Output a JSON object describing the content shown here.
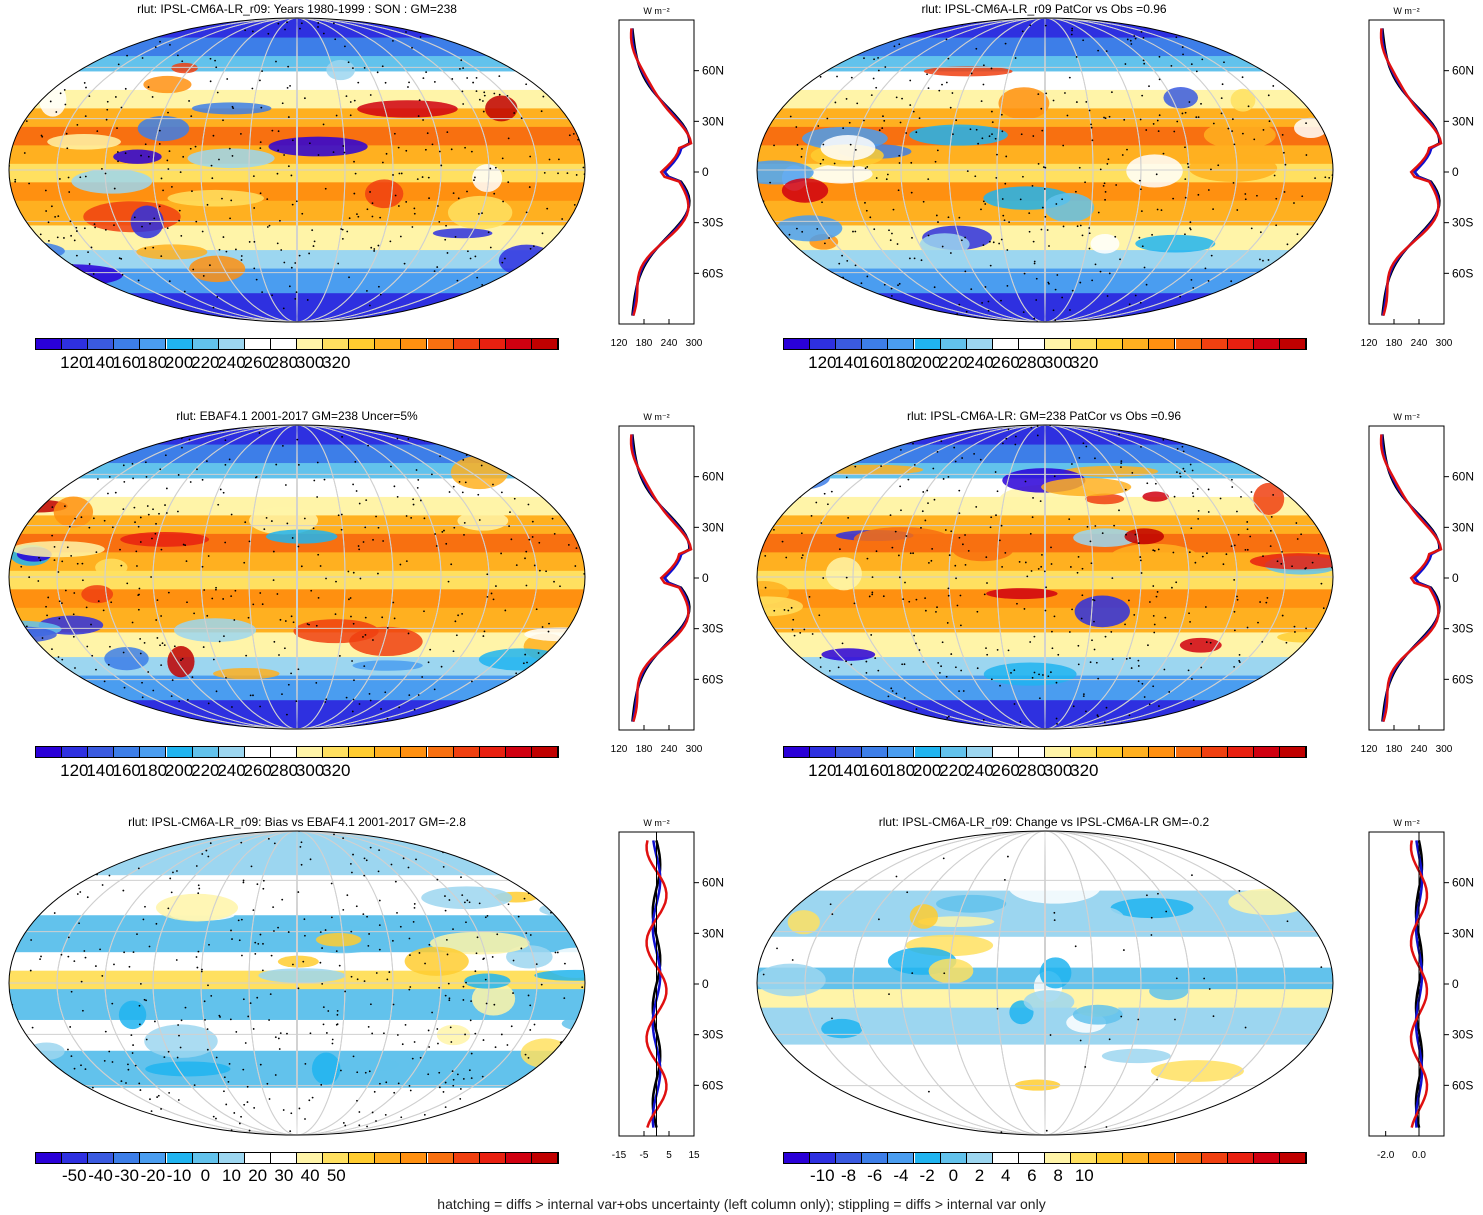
{
  "footer": "hatching = diffs > internal var+obs uncertainty (left column only); stippling = diffs > internal var only",
  "profile_units": "W m⁻²",
  "lat_ticks": [
    "60N",
    "30N",
    "0",
    "30S",
    "60S"
  ],
  "chart_data": [
    {
      "type": "heatmap",
      "title": "rlut: IPSL-CM6A-LR_r09: Years 1980-1999 : SON : GM=238",
      "colorbar_ticks": [
        "120",
        "140",
        "160",
        "180",
        "200",
        "220",
        "240",
        "260",
        "280",
        "300",
        "320"
      ],
      "profile": {
        "xticks": [
          "120",
          "180",
          "240",
          "300"
        ],
        "xlim": [
          120,
          300
        ],
        "series_colors": [
          "#000000",
          "#1010d0",
          "#e01010"
        ]
      }
    },
    {
      "type": "heatmap",
      "title": "rlut: IPSL-CM6A-LR_r09 PatCor vs Obs =0.96",
      "colorbar_ticks": [
        "120",
        "140",
        "160",
        "180",
        "200",
        "220",
        "240",
        "260",
        "280",
        "300",
        "320"
      ],
      "profile": {
        "xticks": [
          "120",
          "180",
          "240",
          "300"
        ],
        "xlim": [
          120,
          300
        ],
        "series_colors": [
          "#000000",
          "#1010d0",
          "#e01010"
        ]
      }
    },
    {
      "type": "heatmap",
      "title": "rlut: EBAF4.1 2001-2017 GM=238 Uncer=5%",
      "colorbar_ticks": [
        "120",
        "140",
        "160",
        "180",
        "200",
        "220",
        "240",
        "260",
        "280",
        "300",
        "320"
      ],
      "profile": {
        "xticks": [
          "120",
          "180",
          "240",
          "300"
        ],
        "xlim": [
          120,
          300
        ],
        "series_colors": [
          "#000000",
          "#1010d0",
          "#e01010"
        ]
      }
    },
    {
      "type": "heatmap",
      "title": "rlut: IPSL-CM6A-LR: GM=238 PatCor vs Obs =0.96",
      "colorbar_ticks": [
        "120",
        "140",
        "160",
        "180",
        "200",
        "220",
        "240",
        "260",
        "280",
        "300",
        "320"
      ],
      "profile": {
        "xticks": [
          "120",
          "180",
          "240",
          "300"
        ],
        "xlim": [
          120,
          300
        ],
        "series_colors": [
          "#000000",
          "#1010d0",
          "#e01010"
        ]
      }
    },
    {
      "type": "heatmap",
      "title": "rlut: IPSL-CM6A-LR_r09: Bias vs EBAF4.1 2001-2017  GM=-2.8",
      "colorbar_ticks": [
        "-50",
        "-40",
        "-30",
        "-20",
        "-10",
        "0",
        "10",
        "20",
        "30",
        "40",
        "50"
      ],
      "profile": {
        "xticks": [
          "-15",
          "-5",
          "5",
          "15"
        ],
        "xlim": [
          -15,
          15
        ],
        "series_colors": [
          "#000000",
          "#1010d0",
          "#e01010"
        ]
      }
    },
    {
      "type": "heatmap",
      "title": "rlut: IPSL-CM6A-LR_r09: Change vs IPSL-CM6A-LR GM=-0.2",
      "colorbar_ticks": [
        "-10",
        "-8",
        "-6",
        "-4",
        "-2",
        "0",
        "2",
        "4",
        "6",
        "8",
        "10"
      ],
      "profile": {
        "xticks": [
          "-2.0",
          "0.0"
        ],
        "xlim": [
          -3,
          1.5
        ],
        "series_colors": [
          "#000000",
          "#1010d0",
          "#e01010"
        ]
      }
    }
  ],
  "palette": {
    "levels": [
      "#2a00d8",
      "#2e30e0",
      "#3a5ae0",
      "#3d7ee8",
      "#4a9df0",
      "#20b4f0",
      "#62c2ec",
      "#9cd6f0",
      "#ffffff",
      "#ffffff",
      "#fff4a8",
      "#ffe060",
      "#ffcc30",
      "#ffb020",
      "#ff9010",
      "#f87010",
      "#f04010",
      "#e82010",
      "#d00010",
      "#c00000"
    ]
  }
}
